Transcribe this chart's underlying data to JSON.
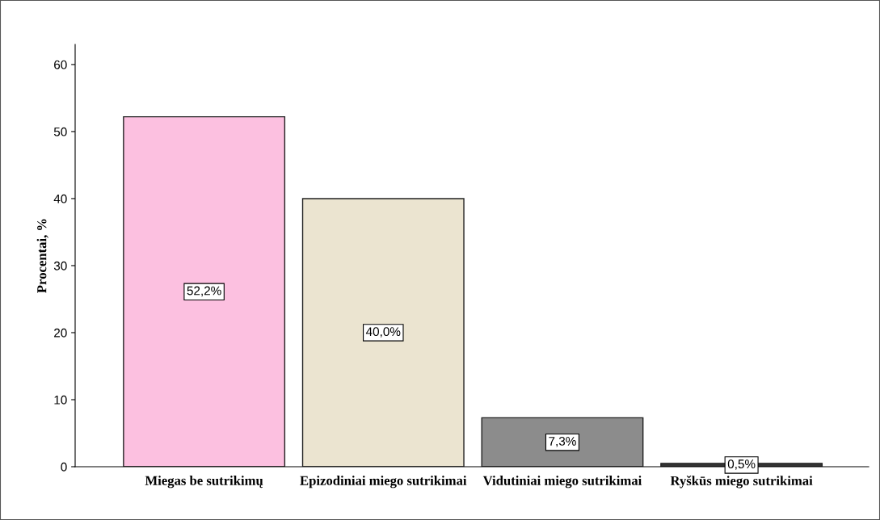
{
  "chart_data": {
    "type": "bar",
    "ylabel": "Procentai, %",
    "categories": [
      "Miegas be sutrikimų",
      "Epizodiniai miego sutrikimai",
      "Vidutiniai miego sutrikimai",
      "Ryškūs miego sutrikimai"
    ],
    "values": [
      52.2,
      40.0,
      7.3,
      0.5
    ],
    "colors": [
      "#fcc0e0",
      "#ebe4d0",
      "#8c8c8c",
      "#333333"
    ],
    "value_labels": [
      "52,2%",
      "40,0%",
      "7,3%",
      "0,5%"
    ],
    "ylim": [
      0,
      63
    ],
    "yticks": [
      0,
      10,
      20,
      30,
      40,
      50,
      60
    ],
    "grid": false,
    "legend": false
  }
}
